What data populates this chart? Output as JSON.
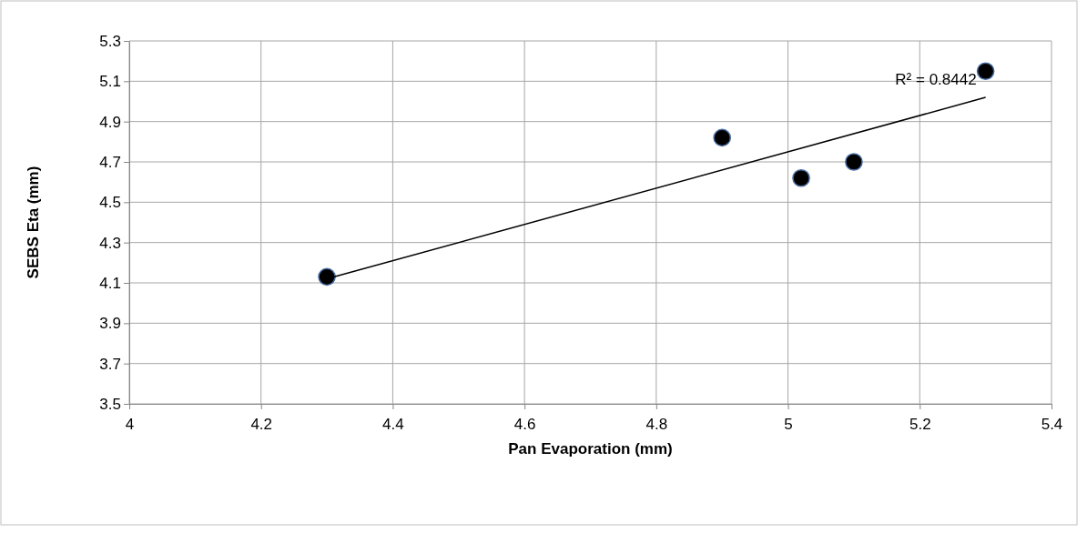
{
  "chart_data": {
    "type": "scatter",
    "xlabel": "Pan Evaporation (mm)",
    "ylabel": "SEBS Eta (mm)",
    "xlim": [
      4,
      5.4
    ],
    "xticks": [
      4,
      4.2,
      4.4,
      4.6,
      4.8,
      5,
      5.2,
      5.4
    ],
    "ylim": [
      3.5,
      5.3
    ],
    "yticks": [
      3.5,
      3.7,
      3.9,
      4.1,
      4.3,
      4.5,
      4.7,
      4.9,
      5.1,
      5.3
    ],
    "grid": true,
    "series": [
      {
        "marker": "circle",
        "color": "#000000",
        "x": [
          4.3,
          4.9,
          5.02,
          5.1,
          5.3
        ],
        "values": [
          4.13,
          4.82,
          4.62,
          4.7,
          5.15
        ]
      },
      {
        "type": "line",
        "color": "#000000",
        "x": [
          4.3,
          5.3
        ],
        "values": [
          4.12,
          5.02
        ]
      }
    ],
    "annotations": [
      "R² = 0.8442"
    ]
  }
}
